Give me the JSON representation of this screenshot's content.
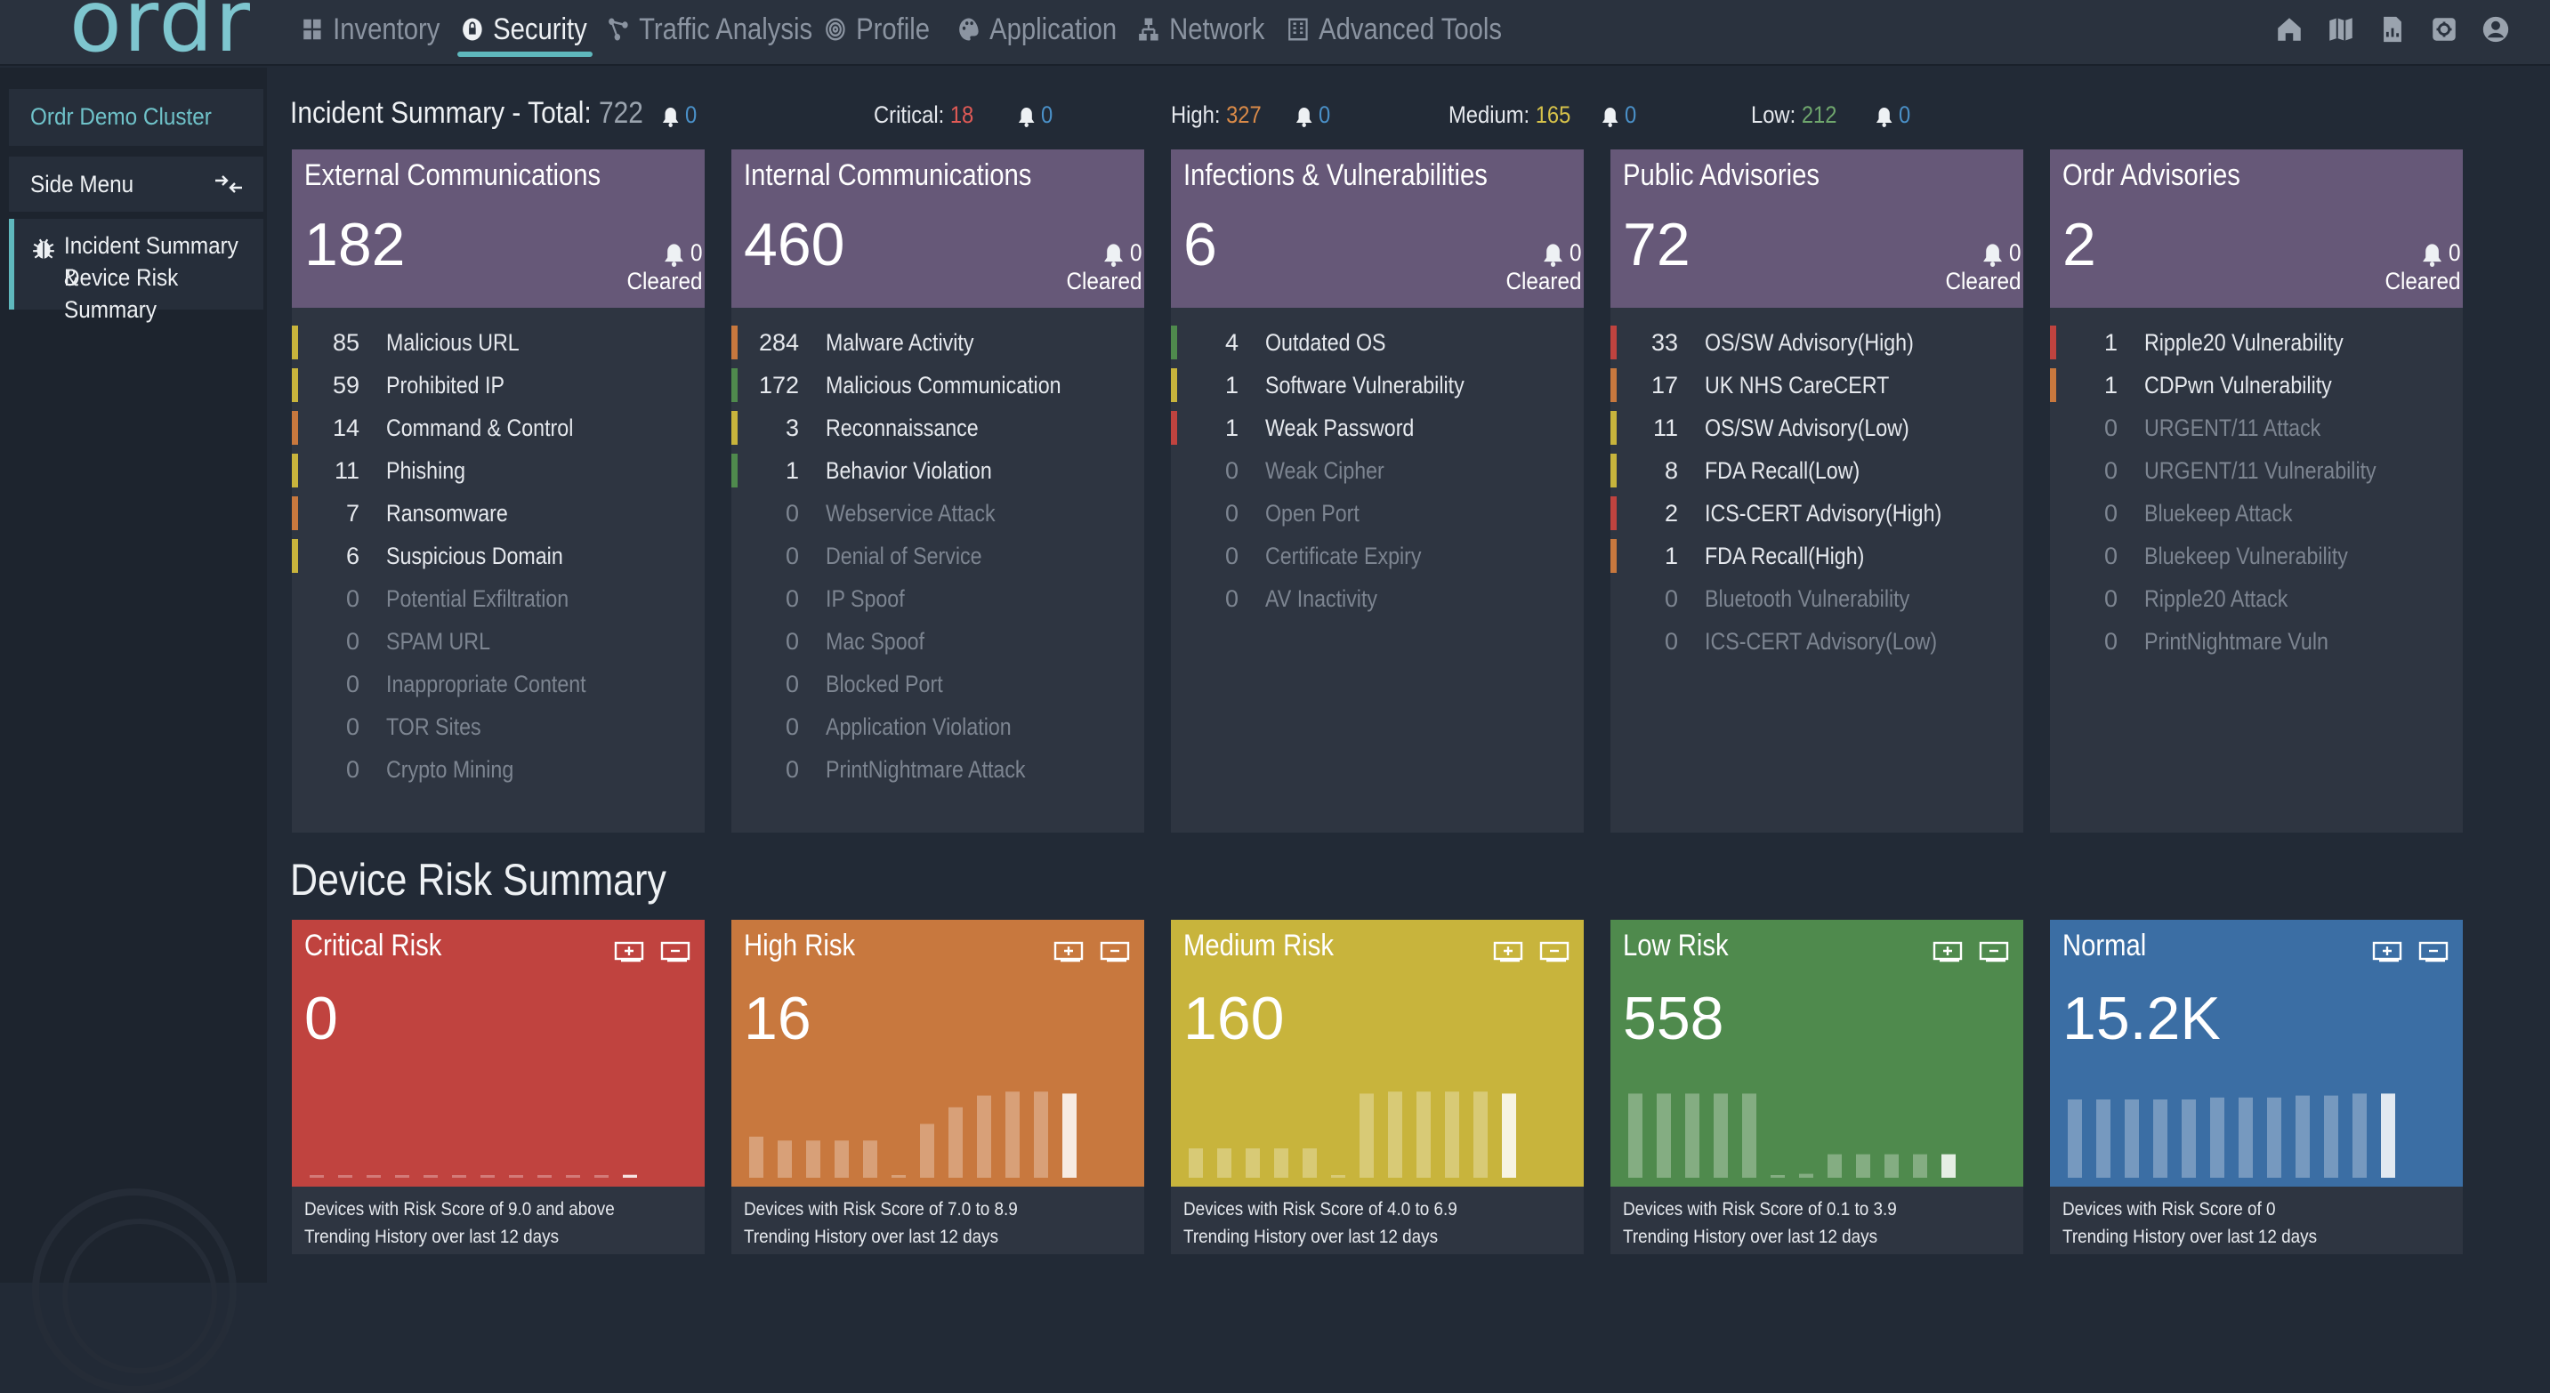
{
  "app": {
    "logo": "ordr"
  },
  "nav": [
    {
      "label": "Inventory",
      "icon": "grid-icon"
    },
    {
      "label": "Security",
      "icon": "shield-lock-icon"
    },
    {
      "label": "Traffic Analysis",
      "icon": "nodes-icon"
    },
    {
      "label": "Profile",
      "icon": "fingerprint-icon"
    },
    {
      "label": "Application",
      "icon": "palette-icon"
    },
    {
      "label": "Network",
      "icon": "network-icon"
    },
    {
      "label": "Advanced Tools",
      "icon": "building-icon"
    }
  ],
  "top_icons": [
    "home-icon",
    "book-icon",
    "report-icon",
    "settings-icon",
    "user-icon"
  ],
  "sidebar": {
    "cluster": "Ordr Demo Cluster",
    "menu_label": "Side Menu",
    "active_line1": "Incident Summary &",
    "active_line2": "Device Risk Summary"
  },
  "incident": {
    "title": "Incident Summary - Total:",
    "total": "722",
    "total_bell": "0",
    "critical_label": "Critical:",
    "critical": "18",
    "critical_bell": "0",
    "high_label": "High:",
    "high": "327",
    "high_bell": "0",
    "medium_label": "Medium:",
    "medium": "165",
    "medium_bell": "0",
    "low_label": "Low:",
    "low": "212",
    "low_bell": "0"
  },
  "colors": {
    "critical": "#c0433f",
    "high": "#c8783e",
    "medium": "#c8b43c",
    "low": "#4f8a4d",
    "normal": "#3b6ea4",
    "accent": "#5fb8bd",
    "panel_header": "#665878"
  },
  "panels": [
    {
      "title": "External Communications",
      "count": "182",
      "cleared": "0",
      "cleared_label": "Cleared",
      "rows": [
        {
          "n": "85",
          "label": "Malicious URL",
          "sev": "medium"
        },
        {
          "n": "59",
          "label": "Prohibited IP",
          "sev": "medium"
        },
        {
          "n": "14",
          "label": "Command & Control",
          "sev": "high"
        },
        {
          "n": "11",
          "label": "Phishing",
          "sev": "medium"
        },
        {
          "n": "7",
          "label": "Ransomware",
          "sev": "high"
        },
        {
          "n": "6",
          "label": "Suspicious Domain",
          "sev": "medium"
        },
        {
          "n": "0",
          "label": "Potential Exfiltration",
          "sev": ""
        },
        {
          "n": "0",
          "label": "SPAM URL",
          "sev": ""
        },
        {
          "n": "0",
          "label": "Inappropriate Content",
          "sev": ""
        },
        {
          "n": "0",
          "label": "TOR Sites",
          "sev": ""
        },
        {
          "n": "0",
          "label": "Crypto Mining",
          "sev": ""
        }
      ]
    },
    {
      "title": "Internal Communications",
      "count": "460",
      "cleared": "0",
      "cleared_label": "Cleared",
      "rows": [
        {
          "n": "284",
          "label": "Malware Activity",
          "sev": "high"
        },
        {
          "n": "172",
          "label": "Malicious Communication",
          "sev": "low"
        },
        {
          "n": "3",
          "label": "Reconnaissance",
          "sev": "medium"
        },
        {
          "n": "1",
          "label": "Behavior Violation",
          "sev": "low"
        },
        {
          "n": "0",
          "label": "Webservice Attack",
          "sev": ""
        },
        {
          "n": "0",
          "label": "Denial of Service",
          "sev": ""
        },
        {
          "n": "0",
          "label": "IP Spoof",
          "sev": ""
        },
        {
          "n": "0",
          "label": "Mac Spoof",
          "sev": ""
        },
        {
          "n": "0",
          "label": "Blocked Port",
          "sev": ""
        },
        {
          "n": "0",
          "label": "Application Violation",
          "sev": ""
        },
        {
          "n": "0",
          "label": "PrintNightmare Attack",
          "sev": ""
        }
      ]
    },
    {
      "title": "Infections & Vulnerabilities",
      "count": "6",
      "cleared": "0",
      "cleared_label": "Cleared",
      "rows": [
        {
          "n": "4",
          "label": "Outdated OS",
          "sev": "low"
        },
        {
          "n": "1",
          "label": "Software Vulnerability",
          "sev": "medium"
        },
        {
          "n": "1",
          "label": "Weak Password",
          "sev": "critical"
        },
        {
          "n": "0",
          "label": "Weak Cipher",
          "sev": ""
        },
        {
          "n": "0",
          "label": "Open Port",
          "sev": ""
        },
        {
          "n": "0",
          "label": "Certificate Expiry",
          "sev": ""
        },
        {
          "n": "0",
          "label": "AV Inactivity",
          "sev": ""
        }
      ]
    },
    {
      "title": "Public Advisories",
      "count": "72",
      "cleared": "0",
      "cleared_label": "Cleared",
      "rows": [
        {
          "n": "33",
          "label": "OS/SW Advisory(High)",
          "sev": "critical"
        },
        {
          "n": "17",
          "label": "UK NHS CareCERT",
          "sev": "high"
        },
        {
          "n": "11",
          "label": "OS/SW Advisory(Low)",
          "sev": "medium"
        },
        {
          "n": "8",
          "label": "FDA Recall(Low)",
          "sev": "medium"
        },
        {
          "n": "2",
          "label": "ICS-CERT Advisory(High)",
          "sev": "critical"
        },
        {
          "n": "1",
          "label": "FDA Recall(High)",
          "sev": "high"
        },
        {
          "n": "0",
          "label": "Bluetooth Vulnerability",
          "sev": ""
        },
        {
          "n": "0",
          "label": "ICS-CERT Advisory(Low)",
          "sev": ""
        }
      ]
    },
    {
      "title": "Ordr Advisories",
      "count": "2",
      "cleared": "0",
      "cleared_label": "Cleared",
      "rows": [
        {
          "n": "1",
          "label": "Ripple20 Vulnerability",
          "sev": "critical"
        },
        {
          "n": "1",
          "label": "CDPwn Vulnerability",
          "sev": "high"
        },
        {
          "n": "0",
          "label": "URGENT/11 Attack",
          "sev": ""
        },
        {
          "n": "0",
          "label": "URGENT/11 Vulnerability",
          "sev": ""
        },
        {
          "n": "0",
          "label": "Bluekeep Attack",
          "sev": ""
        },
        {
          "n": "0",
          "label": "Bluekeep Vulnerability",
          "sev": ""
        },
        {
          "n": "0",
          "label": "Ripple20 Attack",
          "sev": ""
        },
        {
          "n": "0",
          "label": "PrintNightmare Vuln",
          "sev": ""
        }
      ]
    }
  ],
  "device_risk": {
    "title": "Device Risk Summary",
    "cards": [
      {
        "title": "Critical Risk",
        "value": "0",
        "sev": "critical",
        "desc": "Devices with Risk Score of 9.0 and above",
        "trend": "Trending History over last 12 days",
        "history": [
          0.02,
          0.02,
          0.02,
          0.02,
          0.02,
          0.02,
          0.02,
          0.02,
          0.02,
          0.02,
          0.02,
          0.03
        ]
      },
      {
        "title": "High Risk",
        "value": "16",
        "sev": "high",
        "desc": "Devices with Risk Score of 7.0 to 8.9",
        "trend": "Trending History over last 12 days",
        "history": [
          0.42,
          0.38,
          0.38,
          0.38,
          0.38,
          0.02,
          0.55,
          0.72,
          0.84,
          0.88,
          0.88,
          0.86
        ]
      },
      {
        "title": "Medium Risk",
        "value": "160",
        "sev": "medium",
        "desc": "Devices with Risk Score of 4.0 to 6.9",
        "trend": "Trending History over last 12 days",
        "history": [
          0.3,
          0.3,
          0.3,
          0.3,
          0.3,
          0.02,
          0.86,
          0.88,
          0.88,
          0.88,
          0.88,
          0.86
        ]
      },
      {
        "title": "Low Risk",
        "value": "558",
        "sev": "low",
        "desc": "Devices with Risk Score of 0.1 to 3.9",
        "trend": "Trending History over last 12 days",
        "history": [
          0.86,
          0.86,
          0.86,
          0.86,
          0.86,
          0.02,
          0.04,
          0.24,
          0.24,
          0.24,
          0.24,
          0.24
        ]
      },
      {
        "title": "Normal",
        "value": "15.2K",
        "sev": "normal",
        "desc": "Devices with Risk Score of 0",
        "trend": "Trending History over last 12 days",
        "history": [
          0.8,
          0.8,
          0.8,
          0.8,
          0.8,
          0.82,
          0.82,
          0.82,
          0.84,
          0.84,
          0.86,
          0.86
        ]
      }
    ]
  }
}
